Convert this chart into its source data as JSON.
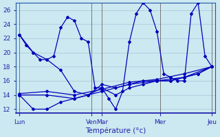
{
  "xlabel": "Température (°c)",
  "background_color": "#cce8f0",
  "grid_color": "#aaccdd",
  "line_color": "#0000bb",
  "ylim": [
    11.5,
    27
  ],
  "yticks": [
    12,
    14,
    16,
    18,
    20,
    22,
    24,
    26
  ],
  "xlim": [
    -0.5,
    28.5
  ],
  "day_labels": [
    "Lun",
    "Ven",
    "Mar",
    "Mer",
    "Jeu"
  ],
  "day_positions": [
    0,
    10.5,
    12,
    20.5,
    28
  ],
  "vline_positions": [
    0,
    10.5,
    12,
    20.5,
    28
  ],
  "series": [
    {
      "x": [
        0,
        1,
        2,
        3,
        4,
        5,
        6,
        7,
        8,
        9,
        10,
        11,
        12,
        13,
        14,
        15,
        16,
        17,
        18,
        19,
        20,
        21,
        22,
        23,
        24,
        25,
        26,
        27,
        28
      ],
      "y": [
        22.5,
        21,
        20,
        19,
        19,
        19.5,
        23.5,
        25,
        24.5,
        22,
        21.5,
        15,
        15,
        13.5,
        12,
        14.5,
        21.5,
        25.5,
        27,
        26,
        23,
        17,
        16.5,
        16,
        16,
        25.5,
        27,
        19.5,
        18
      ]
    },
    {
      "x": [
        0,
        4,
        8,
        12,
        16,
        20,
        24,
        28
      ],
      "y": [
        14,
        14,
        13.5,
        14.5,
        15.5,
        16,
        16.5,
        18
      ]
    },
    {
      "x": [
        0,
        4,
        8,
        12,
        16,
        20,
        24,
        28
      ],
      "y": [
        14.2,
        14.5,
        14,
        14.8,
        15.8,
        16.2,
        17,
        18
      ]
    },
    {
      "x": [
        0,
        2,
        4,
        6,
        8,
        10,
        12,
        14,
        16,
        18,
        20,
        22,
        24,
        26,
        28
      ],
      "y": [
        22.5,
        20,
        19,
        17.5,
        14.5,
        14,
        15.5,
        15,
        15.5,
        16,
        16,
        16,
        16.5,
        17,
        18
      ]
    },
    {
      "x": [
        0,
        2,
        4,
        6,
        8,
        10,
        12,
        14,
        16,
        18,
        20,
        22,
        24,
        26,
        28
      ],
      "y": [
        14,
        12,
        12,
        13,
        13.5,
        14,
        15,
        14,
        15,
        15.5,
        16,
        16,
        16.5,
        17,
        18
      ]
    }
  ]
}
